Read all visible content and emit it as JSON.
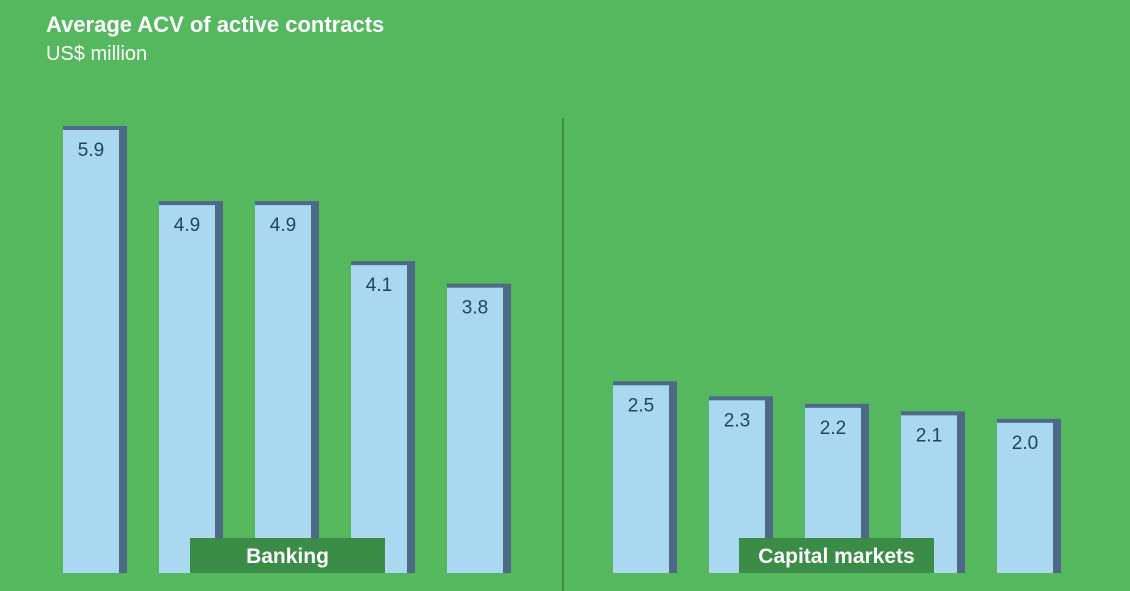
{
  "chart_data": {
    "type": "bar",
    "title": "Average ACV of active contracts",
    "subtitle": "US$ million",
    "ylim": [
      0,
      6.5
    ],
    "grid": false,
    "groups": [
      {
        "label": "Banking",
        "values": [
          5.9,
          4.9,
          4.9,
          4.1,
          3.8
        ]
      },
      {
        "label": "Capital markets",
        "values": [
          2.5,
          2.3,
          2.2,
          2.1,
          2.0
        ]
      }
    ],
    "value_labels": [
      [
        "5.9",
        "4.9",
        "4.9",
        "4.1",
        "3.8"
      ],
      [
        "2.5",
        "2.3",
        "2.2",
        "2.1",
        "2.0"
      ]
    ]
  },
  "colors": {
    "background": "#55b85f",
    "bar_fill": "#a9d8f0",
    "bar_shadow": "#4c6a86",
    "label_text": "#1e4564",
    "group_box": "#3b8c46",
    "divider": "#3f8f4a"
  }
}
